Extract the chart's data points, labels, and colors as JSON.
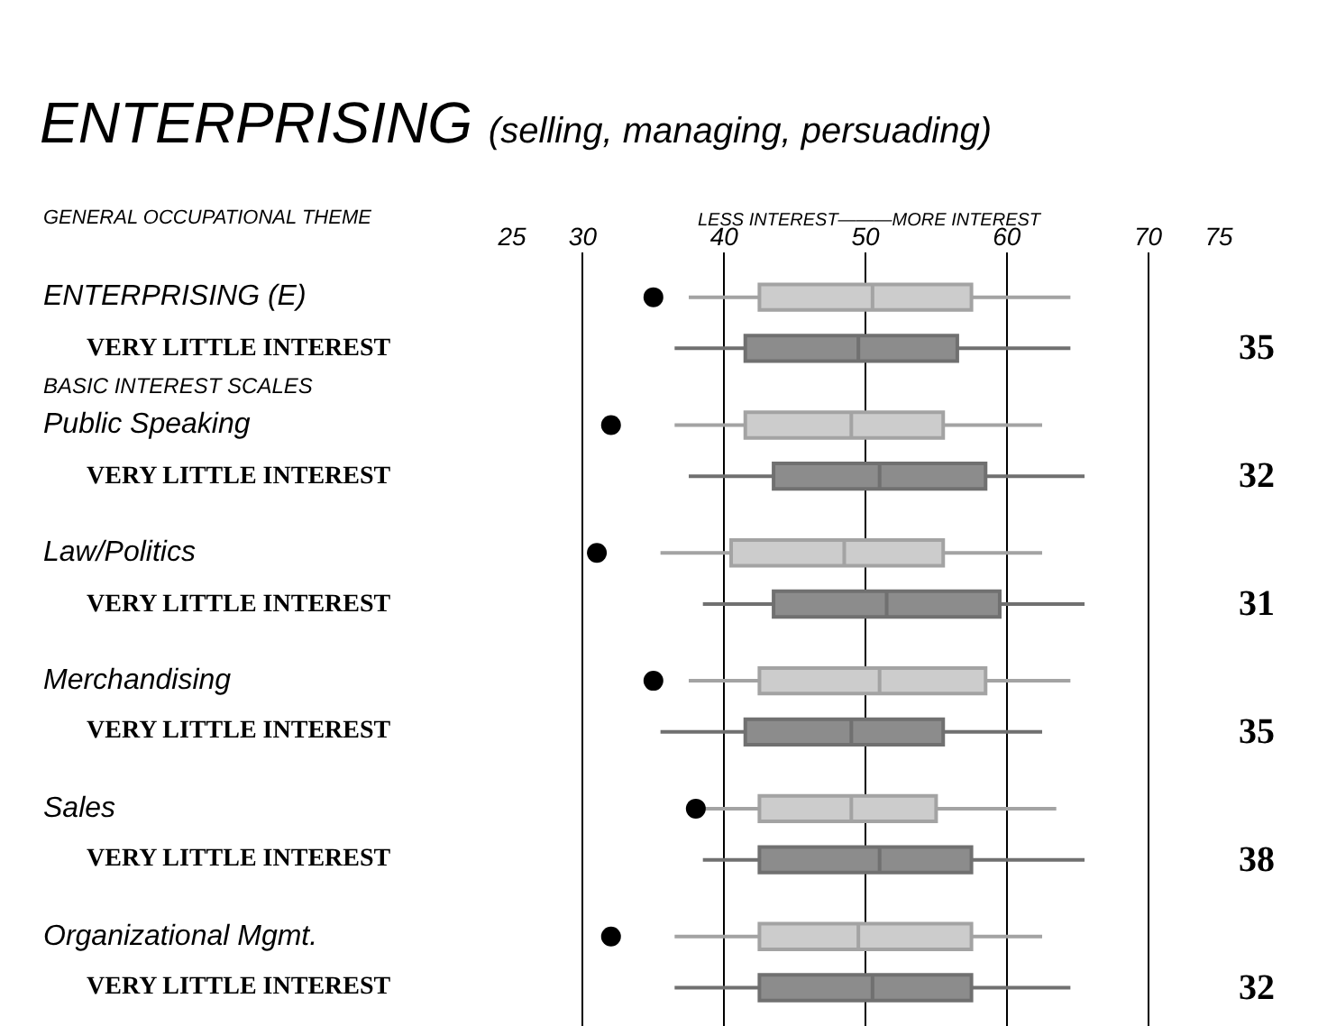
{
  "chart_data": {
    "type": "box",
    "orientation": "horizontal",
    "title": "ENTERPRISING",
    "subtitle": "(selling, managing, persuading)",
    "categories": [
      "ENTERPRISING (E)",
      "Public Speaking",
      "Law/Politics",
      "Merchandising",
      "Sales",
      "Organizational Mgmt."
    ],
    "xlim": [
      25,
      75
    ],
    "xticks": [
      25,
      30,
      40,
      50,
      60,
      70,
      75
    ],
    "grid": "x",
    "tick_labels": "x",
    "series": [
      {
        "color": "#cccccc",
        "boxes": [
          {
            "low": 37.5,
            "q1": 42.5,
            "median": 50.5,
            "q3": 57.5,
            "high": 64.5
          },
          {
            "low": 36.5,
            "q1": 41.5,
            "median": 49,
            "q3": 55.5,
            "high": 62.5
          },
          {
            "low": 35.5,
            "q1": 40.5,
            "median": 48.5,
            "q3": 55.5,
            "high": 62.5
          },
          {
            "low": 37.5,
            "q1": 42.5,
            "median": 51,
            "q3": 58.5,
            "high": 64.5
          },
          {
            "low": 38.5,
            "q1": 42.5,
            "median": 49,
            "q3": 55,
            "high": 63.5
          },
          {
            "low": 36.5,
            "q1": 42.5,
            "median": 49.5,
            "q3": 57.5,
            "high": 62.5
          }
        ]
      },
      {
        "color": "#8c8c8c",
        "boxes": [
          {
            "low": 36.5,
            "q1": 41.5,
            "median": 49.5,
            "q3": 56.5,
            "high": 64.5
          },
          {
            "low": 37.5,
            "q1": 43.5,
            "median": 51,
            "q3": 58.5,
            "high": 65.5
          },
          {
            "low": 38.5,
            "q1": 43.5,
            "median": 51.5,
            "q3": 59.5,
            "high": 65.5
          },
          {
            "low": 35.5,
            "q1": 41.5,
            "median": 49,
            "q3": 55.5,
            "high": 62.5
          },
          {
            "low": 38.5,
            "q1": 42.5,
            "median": 51,
            "q3": 57.5,
            "high": 65.5
          },
          {
            "low": 36.5,
            "q1": 42.5,
            "median": 50.5,
            "q3": 57.5,
            "high": 64.5
          }
        ]
      },
      {
        "type": "scatter",
        "color": "#000000",
        "marker": "circle",
        "data_labels": true,
        "values": [
          35,
          32,
          31,
          35,
          38,
          32
        ]
      }
    ],
    "annotations": [
      {
        "text": "GENERAL OCCUPATIONAL THEME"
      },
      {
        "text": "LESS INTEREST———MORE INTEREST"
      },
      {
        "text": "BASIC INTEREST SCALES"
      },
      "VERY LITTLE INTEREST",
      "VERY LITTLE INTEREST",
      "VERY LITTLE INTEREST",
      "VERY LITTLE INTEREST",
      "VERY LITTLE INTEREST",
      "VERY LITTLE INTEREST"
    ]
  }
}
